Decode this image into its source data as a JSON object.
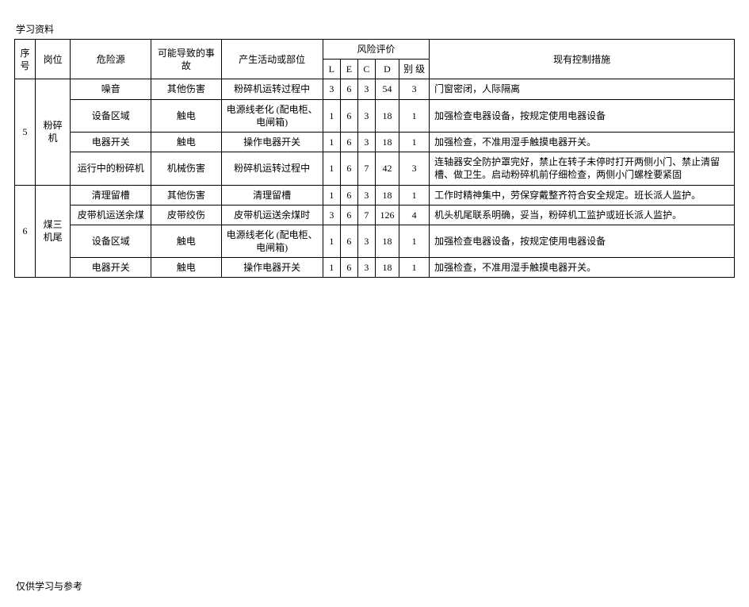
{
  "document": {
    "topLabel": "学习资料",
    "footerNote": "仅供学习与参考"
  },
  "table": {
    "header": {
      "seq": "序号",
      "post": "岗位",
      "hazard": "危险源",
      "possibleEvent": "可能导致的事故",
      "activity": "产生活动或部位",
      "riskGroup": "风险评价",
      "L": "L",
      "E": "E",
      "C": "C",
      "D": "D",
      "grade": "别 级",
      "controls": "现有控制措施"
    },
    "groups": [
      {
        "seq": "5",
        "post": "粉碎机",
        "rows": [
          {
            "hazard": "噪音",
            "event": "其他伤害",
            "activity": "粉碎机运转过程中",
            "L": "3",
            "E": "6",
            "C": "3",
            "D": "54",
            "grade": "3",
            "control": "门窗密闭，人际隔离"
          },
          {
            "hazard": "设备区域",
            "event": "触电",
            "activity": "电源线老化 (配电柜、电闸箱)",
            "L": "1",
            "E": "6",
            "C": "3",
            "D": "18",
            "grade": "1",
            "control": "加强检查电器设备，按规定使用电器设备"
          },
          {
            "hazard": "电器开关",
            "event": "触电",
            "activity": "操作电器开关",
            "L": "1",
            "E": "6",
            "C": "3",
            "D": "18",
            "grade": "1",
            "control": "加强检查，不准用湿手触摸电器开关。"
          },
          {
            "hazard": "运行中的粉碎机",
            "event": "机械伤害",
            "activity": "粉碎机运转过程中",
            "L": "1",
            "E": "6",
            "C": "7",
            "D": "42",
            "grade": "3",
            "control": "连轴器安全防护罩完好，禁止在转子未停时打开两侧小门、禁止清留槽、做卫生。启动粉碎机前仔细检查，两侧小门螺栓要紧固"
          }
        ]
      },
      {
        "seq": "6",
        "post": "煤三机尾",
        "rows": [
          {
            "hazard": "清理留槽",
            "event": "其他伤害",
            "activity": "清理留槽",
            "L": "1",
            "E": "6",
            "C": "3",
            "D": "18",
            "grade": "1",
            "control": "工作时精神集中，劳保穿戴整齐符合安全规定。班长派人监护。"
          },
          {
            "hazard": "皮带机运送余煤",
            "event": "皮带绞伤",
            "activity": "皮带机运送余煤时",
            "L": "3",
            "E": "6",
            "C": "7",
            "D": "126",
            "grade": "4",
            "control": "机头机尾联系明确，妥当，粉碎机工监护或班长派人监护。"
          },
          {
            "hazard": "设备区域",
            "event": "触电",
            "activity": "电源线老化 (配电柜、电闸箱)",
            "L": "1",
            "E": "6",
            "C": "3",
            "D": "18",
            "grade": "1",
            "control": "加强检查电器设备，按规定使用电器设备"
          },
          {
            "hazard": "电器开关",
            "event": "触电",
            "activity": "操作电器开关",
            "L": "1",
            "E": "6",
            "C": "3",
            "D": "18",
            "grade": "1",
            "control": "加强检查，不准用湿手触摸电器开关。"
          }
        ]
      }
    ]
  },
  "style": {
    "fontSize": 12,
    "borderColor": "#000000",
    "background": "#ffffff",
    "textColor": "#000000"
  }
}
